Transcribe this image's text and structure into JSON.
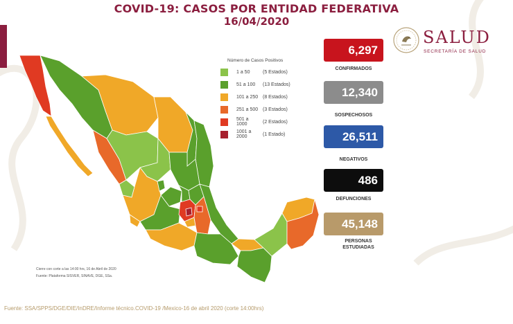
{
  "title": {
    "main": "COVID-19: CASOS POR ENTIDAD FEDERATIVA",
    "date": "16/04/2020"
  },
  "legend": {
    "title": "Número de Casos Positivos",
    "items": [
      {
        "range": "1 a 50",
        "count": "(5 Estados)",
        "color": "#8bc34a"
      },
      {
        "range": "51 a 100",
        "count": "(13 Estados)",
        "color": "#5aa02c"
      },
      {
        "range": "101 a 250",
        "count": "(8 Estados)",
        "color": "#f0a828"
      },
      {
        "range": "251 a 500",
        "count": "(3 Estados)",
        "color": "#e8692a"
      },
      {
        "range": "501 a 1000",
        "count": "(2 Estados)",
        "color": "#e03a22"
      },
      {
        "range": "1001 a 2000",
        "count": "(1 Estado)",
        "color": "#a7202e"
      }
    ]
  },
  "notes": {
    "cutoff": "Cierre con corte a las 14:00 hrs, 16 de Abril de 2020",
    "platform": "Fuente: Plataforma SISVER, SINAVE, DGE, SSa."
  },
  "stats": [
    {
      "value": "6,297",
      "label": "CONFIRMADOS",
      "color": "#c8141d"
    },
    {
      "value": "12,340",
      "label": "SOSPECHOSOS",
      "color": "#8c8c8c"
    },
    {
      "value": "26,511",
      "label": "NEGATIVOS",
      "color": "#2d59a7"
    },
    {
      "value": "486",
      "label": "DEFUNCIONES",
      "color": "#0d0d0d"
    },
    {
      "value": "45,148",
      "label": "PERSONAS ESTUDIADAS",
      "color": "#b89a6a"
    }
  ],
  "brand": {
    "name": "SALUD",
    "sub": "SECRETARÍA DE SALUD",
    "logo_icon": "mexico-coat-of-arms-icon"
  },
  "source": "Fuente: SSA/SPPS/DGE/DIE/InDRE/Informe técnico.COVID-19 /Mexico-16 de abril 2020 (corte 14:00hrs)"
}
